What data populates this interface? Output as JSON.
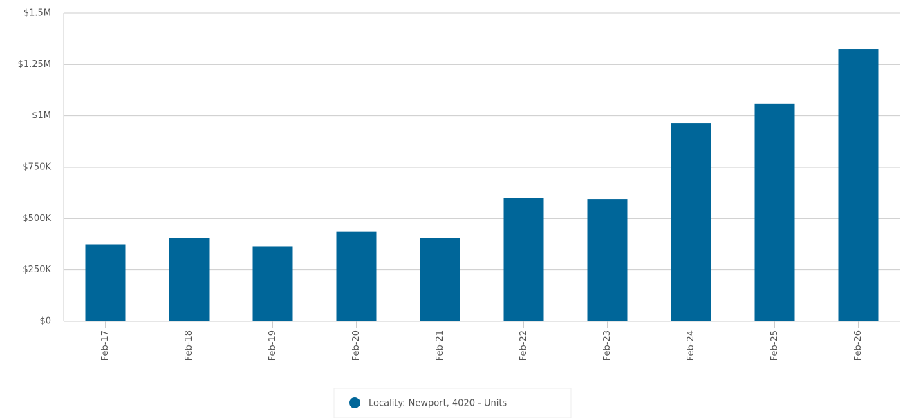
{
  "chart_data": {
    "type": "bar",
    "categories": [
      "Feb-17",
      "Feb-18",
      "Feb-19",
      "Feb-20",
      "Feb-21",
      "Feb-22",
      "Feb-23",
      "Feb-24",
      "Feb-25",
      "Feb-26"
    ],
    "series": [
      {
        "name": "Locality: Newport, 4020 - Units",
        "color": "#006699",
        "values": [
          375000,
          405000,
          365000,
          435000,
          405000,
          600000,
          595000,
          965000,
          1060000,
          1325000
        ]
      }
    ],
    "ylim": [
      0,
      1500000
    ],
    "yticks": [
      {
        "value": 0,
        "label": "$0"
      },
      {
        "value": 250000,
        "label": "$250K"
      },
      {
        "value": 500000,
        "label": "$500K"
      },
      {
        "value": 750000,
        "label": "$750K"
      },
      {
        "value": 1000000,
        "label": "$1M"
      },
      {
        "value": 1250000,
        "label": "$1.25M"
      },
      {
        "value": 1500000,
        "label": "$1.5M"
      }
    ],
    "grid": true,
    "legend": "bottom"
  }
}
